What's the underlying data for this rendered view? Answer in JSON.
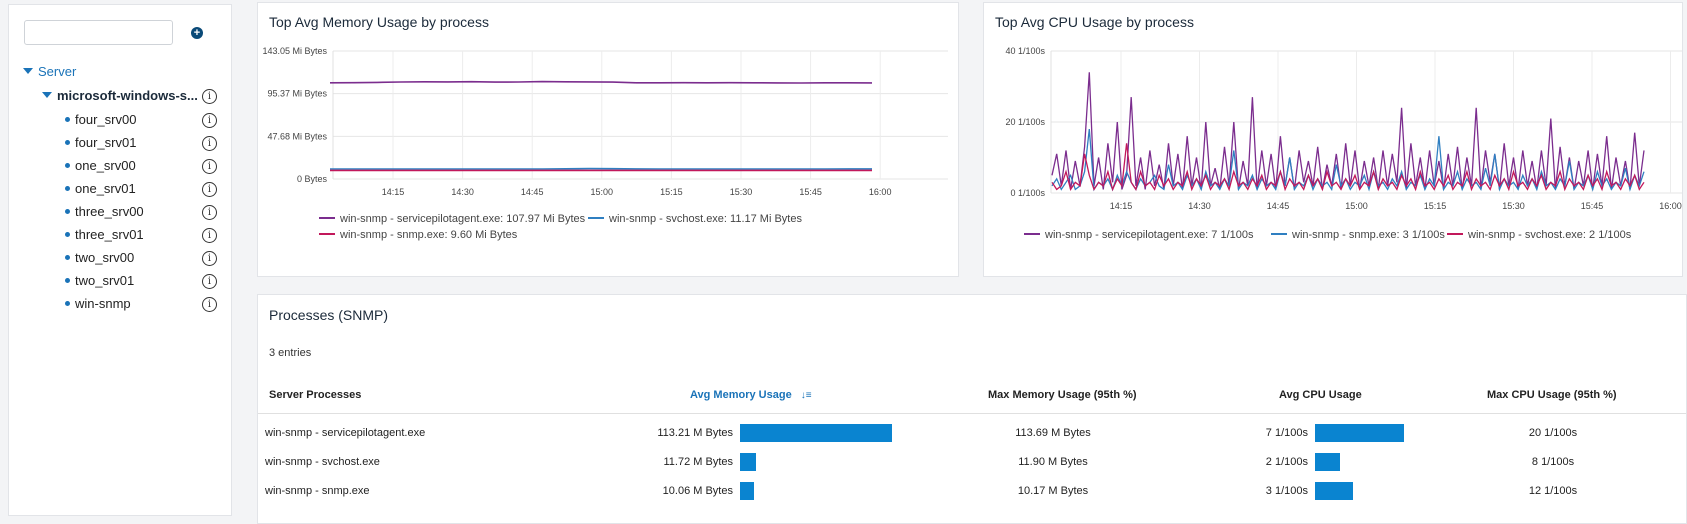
{
  "sidebar": {
    "search_value": "",
    "search_placeholder": "",
    "add_icon": "plus-circle-icon",
    "root": "Server",
    "group": "microsoft-windows-s...",
    "items": [
      "four_srv00",
      "four_srv01",
      "one_srv00",
      "one_srv01",
      "three_srv00",
      "three_srv01",
      "two_srv00",
      "two_srv01",
      "win-snmp"
    ]
  },
  "memory_chart": {
    "title": "Top Avg Memory Usage by process",
    "legend": [
      {
        "label": "win-snmp - servicepilotagent.exe: 107.97 Mi Bytes",
        "color": "#7b2d8e"
      },
      {
        "label": "win-snmp - svchost.exe: 11.17 Mi Bytes",
        "color": "#2f7fc1"
      },
      {
        "label": "win-snmp - snmp.exe: 9.60 Mi Bytes",
        "color": "#c2185b"
      }
    ]
  },
  "cpu_chart": {
    "title": "Top Avg CPU Usage by process",
    "legend": [
      {
        "label": "win-snmp - servicepilotagent.exe: 7 1/100s",
        "color": "#7b2d8e"
      },
      {
        "label": "win-snmp - snmp.exe: 3 1/100s",
        "color": "#2f7fc1"
      },
      {
        "label": "win-snmp - svchost.exe: 2 1/100s",
        "color": "#c2185b"
      }
    ]
  },
  "chart_data": [
    {
      "type": "line",
      "title": "Top Avg Memory Usage by process",
      "y_ticks": [
        "0 Bytes",
        "47.68 Mi Bytes",
        "95.37 Mi Bytes",
        "143.05 Mi Bytes"
      ],
      "ylim": [
        0,
        143.05
      ],
      "x_ticks": [
        "14:15",
        "14:30",
        "14:45",
        "15:00",
        "15:15",
        "15:30",
        "15:45",
        "16:00"
      ],
      "series": [
        {
          "name": "win-snmp - servicepilotagent.exe",
          "color": "#7b2d8e",
          "values": [
            107.5,
            107.6,
            108.0,
            108.4,
            108.6,
            108.5,
            108.7,
            108.3,
            108.4,
            108.8,
            108.6,
            108.5,
            108.3,
            107.5,
            107.5,
            107.6,
            107.5,
            107.6,
            107.5,
            107.4,
            107.3,
            107.5,
            107.5,
            107.4
          ]
        },
        {
          "name": "win-snmp - svchost.exe",
          "color": "#2f7fc1",
          "values": [
            11.2,
            11.2,
            11.2,
            11.2,
            11.2,
            11.2,
            11.2,
            11.2,
            11.2,
            11.2,
            11.4,
            11.6,
            11.5,
            11.3,
            11.2,
            11.2,
            11.2,
            11.2,
            11.2,
            11.2,
            11.2,
            11.2,
            11.3,
            11.3
          ]
        },
        {
          "name": "win-snmp - snmp.exe",
          "color": "#c2185b",
          "values": [
            9.6,
            9.6,
            9.6,
            9.6,
            9.6,
            9.6,
            9.6,
            9.6,
            9.6,
            9.6,
            9.6,
            9.6,
            9.6,
            9.6,
            9.6,
            9.6,
            9.6,
            9.6,
            9.6,
            9.6,
            9.6,
            9.6,
            9.6,
            9.6
          ]
        }
      ]
    },
    {
      "type": "line",
      "title": "Top Avg CPU Usage by process",
      "y_ticks": [
        "0 1/100s",
        "20 1/100s",
        "40 1/100s"
      ],
      "ylim": [
        0,
        40
      ],
      "x_ticks": [
        "14:15",
        "14:30",
        "14:45",
        "15:00",
        "15:15",
        "15:30",
        "15:45",
        "16:00"
      ],
      "series": [
        {
          "name": "win-snmp - servicepilotagent.exe",
          "color": "#7b2d8e",
          "values": [
            5,
            11,
            2,
            12,
            1,
            9,
            2,
            13,
            34,
            2,
            10,
            1,
            14,
            3,
            20,
            1,
            5,
            27,
            2,
            10,
            1,
            12,
            2,
            8,
            1,
            14,
            2,
            11,
            1,
            16,
            2,
            10,
            1,
            20,
            2,
            7,
            1,
            13,
            2,
            20,
            1,
            9,
            2,
            27,
            1,
            12,
            2,
            11,
            1,
            16,
            2,
            10,
            1,
            12,
            3,
            9,
            2,
            13,
            1,
            8,
            2,
            11,
            1,
            14,
            2,
            12,
            1,
            9,
            2,
            10,
            1,
            12,
            2,
            11,
            3,
            24,
            1,
            14,
            2,
            10,
            1,
            12,
            2,
            9,
            1,
            11,
            2,
            13,
            1,
            10,
            2,
            24,
            1,
            12,
            3,
            11,
            1,
            14,
            2,
            10,
            1,
            12,
            2,
            9,
            1,
            12,
            2,
            21,
            1,
            13,
            2,
            10,
            1,
            9,
            2,
            12,
            1,
            11,
            2,
            16,
            1,
            10,
            2,
            9,
            1,
            17,
            2,
            12
          ]
        },
        {
          "name": "win-snmp - snmp.exe",
          "color": "#2f7fc1",
          "values": [
            2,
            4,
            1,
            3,
            5,
            1,
            2,
            6,
            18,
            1,
            3,
            2,
            4,
            1,
            5,
            2,
            6,
            3,
            1,
            4,
            2,
            3,
            5,
            2,
            1,
            8,
            2,
            3,
            1,
            5,
            2,
            4,
            1,
            6,
            2,
            3,
            1,
            4,
            2,
            12,
            1,
            3,
            2,
            5,
            1,
            4,
            2,
            3,
            1,
            6,
            2,
            10,
            1,
            3,
            2,
            5,
            1,
            4,
            2,
            3,
            1,
            8,
            2,
            4,
            1,
            3,
            2,
            5,
            1,
            6,
            2,
            3,
            1,
            4,
            2,
            6,
            1,
            3,
            2,
            5,
            1,
            4,
            2,
            16,
            1,
            3,
            2,
            6,
            1,
            4,
            2,
            3,
            1,
            7,
            2,
            11,
            1,
            4,
            2,
            3,
            1,
            5,
            2,
            4,
            1,
            6,
            2,
            3,
            1,
            4,
            2,
            9,
            1,
            3,
            2,
            5,
            1,
            6,
            2,
            4,
            1,
            3,
            2,
            7,
            1,
            5,
            2,
            6
          ]
        },
        {
          "name": "win-snmp - svchost.exe",
          "color": "#c2185b",
          "values": [
            3,
            1,
            2,
            6,
            1,
            3,
            2,
            11,
            5,
            1,
            3,
            2,
            6,
            1,
            4,
            2,
            14,
            3,
            1,
            6,
            2,
            3,
            1,
            5,
            2,
            4,
            1,
            3,
            2,
            6,
            1,
            4,
            2,
            5,
            1,
            3,
            2,
            4,
            1,
            6,
            2,
            3,
            1,
            4,
            2,
            5,
            1,
            3,
            2,
            6,
            1,
            4,
            2,
            3,
            1,
            5,
            2,
            4,
            1,
            6,
            2,
            3,
            1,
            4,
            2,
            5,
            1,
            3,
            2,
            6,
            1,
            4,
            2,
            3,
            1,
            5,
            2,
            4,
            1,
            6,
            2,
            3,
            1,
            4,
            2,
            5,
            1,
            3,
            2,
            6,
            1,
            4,
            2,
            3,
            1,
            5,
            2,
            4,
            1,
            6,
            2,
            3,
            1,
            4,
            2,
            5,
            1,
            3,
            2,
            6,
            1,
            4,
            2,
            3,
            1,
            5,
            2,
            4,
            1,
            6,
            2,
            3,
            1,
            4,
            2,
            5,
            1,
            3
          ]
        }
      ]
    }
  ],
  "processes": {
    "title": "Processes (SNMP)",
    "entries_text": "3 entries",
    "columns": [
      "Server Processes",
      "Avg Memory Usage",
      "Max Memory Usage (95th %)",
      "Avg CPU Usage",
      "Max CPU Usage (95th %)"
    ],
    "sort_icon": "sort-descending-icon",
    "sort_glyph": "↓≡",
    "rows": [
      {
        "name": "win-snmp - servicepilotagent.exe",
        "avg_mem": "113.21 M Bytes",
        "avg_mem_frac": 1.0,
        "max_mem": "113.69 M Bytes",
        "avg_cpu": "7 1/100s",
        "avg_cpu_frac": 1.0,
        "max_cpu": "20 1/100s"
      },
      {
        "name": "win-snmp - svchost.exe",
        "avg_mem": "11.72 M Bytes",
        "avg_mem_frac": 0.1035,
        "max_mem": "11.90 M Bytes",
        "avg_cpu": "2 1/100s",
        "avg_cpu_frac": 0.2857,
        "max_cpu": "8 1/100s"
      },
      {
        "name": "win-snmp - snmp.exe",
        "avg_mem": "10.06 M Bytes",
        "avg_mem_frac": 0.0889,
        "max_mem": "10.17 M Bytes",
        "avg_cpu": "3 1/100s",
        "avg_cpu_frac": 0.4286,
        "max_cpu": "12 1/100s"
      }
    ]
  }
}
